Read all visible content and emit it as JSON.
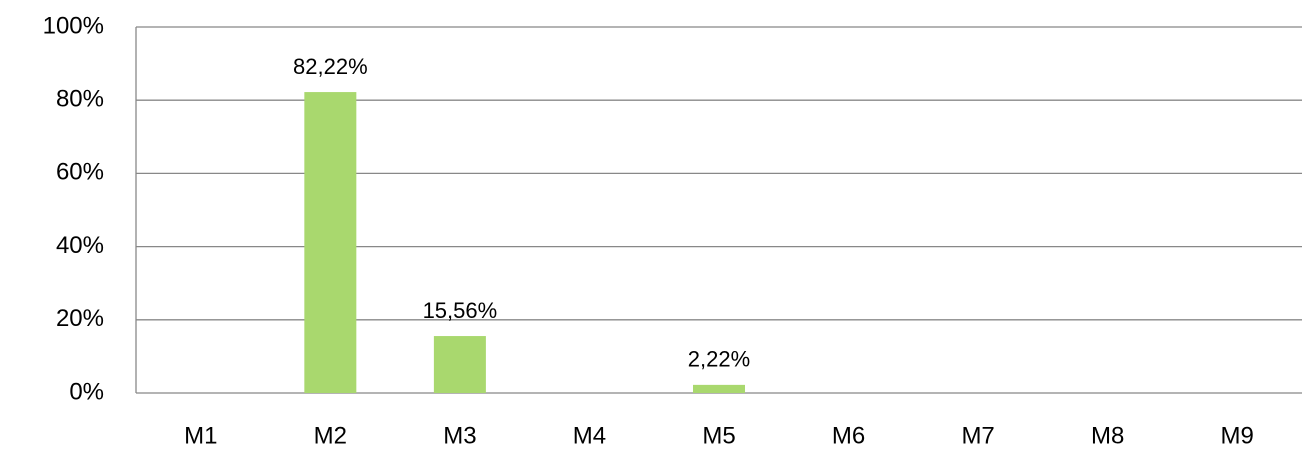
{
  "chart_data": {
    "type": "bar",
    "categories": [
      "M1",
      "M2",
      "M3",
      "M4",
      "M5",
      "M6",
      "M7",
      "M8",
      "M9"
    ],
    "values": [
      0,
      82.22,
      15.56,
      0,
      2.22,
      0,
      0,
      0,
      0
    ],
    "value_labels": [
      null,
      "82,22%",
      "15,56%",
      null,
      "2,22%",
      null,
      null,
      null,
      null
    ],
    "color": "#a9d86e",
    "ylim": [
      0,
      100
    ],
    "yticks": [
      {
        "value": 0,
        "label": "0%"
      },
      {
        "value": 20,
        "label": "20%"
      },
      {
        "value": 40,
        "label": "40%"
      },
      {
        "value": 60,
        "label": "60%"
      },
      {
        "value": 80,
        "label": "80%"
      },
      {
        "value": 100,
        "label": "100%"
      }
    ],
    "grid": true
  }
}
